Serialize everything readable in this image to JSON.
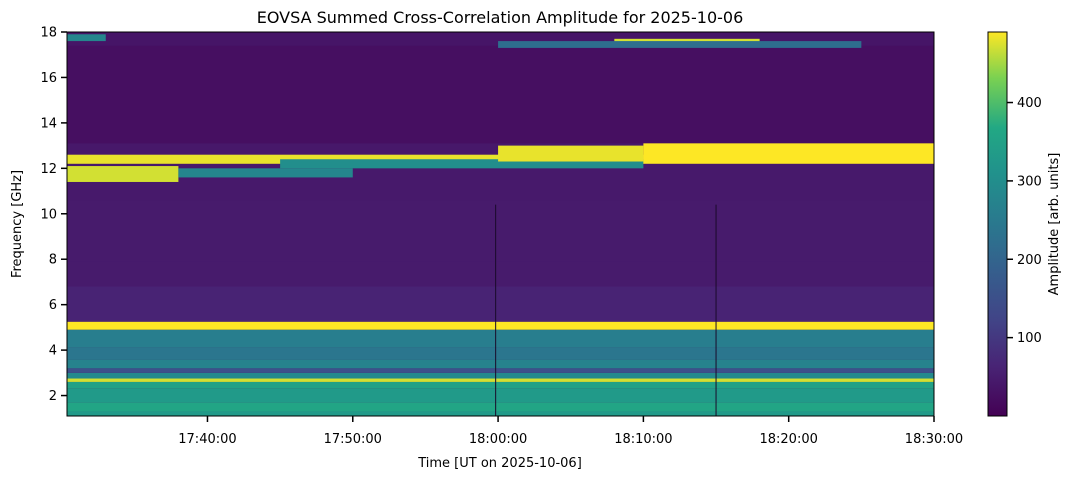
{
  "chart_data": {
    "type": "heatmap",
    "title": "EOVSA Summed Cross-Correlation Amplitude for 2025-10-06",
    "xlabel": "Time [UT on 2025-10-06]",
    "ylabel": "Frequency [GHz]",
    "colorbar_label": "Amplitude [arb. units]",
    "colormap": "viridis",
    "x_range": [
      "17:30:20",
      "18:30:00"
    ],
    "x_ticks": [
      "17:40:00",
      "17:50:00",
      "18:00:00",
      "18:10:00",
      "18:20:00",
      "18:30:00"
    ],
    "ylim": [
      1.1,
      18.0
    ],
    "y_ticks": [
      2,
      4,
      6,
      8,
      10,
      12,
      14,
      16,
      18
    ],
    "color_range": [
      0,
      490
    ],
    "colorbar_ticks": [
      100,
      200,
      300,
      400
    ],
    "background_amplitude": 40,
    "frequency_bands": [
      {
        "from": 1.1,
        "to": 1.3,
        "amplitude": 330
      },
      {
        "from": 1.3,
        "to": 1.7,
        "amplitude": 360
      },
      {
        "from": 1.7,
        "to": 2.3,
        "amplitude": 330
      },
      {
        "from": 2.3,
        "to": 2.6,
        "amplitude": 350
      },
      {
        "from": 2.6,
        "to": 2.75,
        "amplitude": 470
      },
      {
        "from": 2.75,
        "to": 3.0,
        "amplitude": 290
      },
      {
        "from": 3.0,
        "to": 3.2,
        "amplitude": 150
      },
      {
        "from": 3.2,
        "to": 3.6,
        "amplitude": 270
      },
      {
        "from": 3.6,
        "to": 4.1,
        "amplitude": 240
      },
      {
        "from": 4.1,
        "to": 4.9,
        "amplitude": 260
      },
      {
        "from": 4.9,
        "to": 5.25,
        "amplitude": 490
      },
      {
        "from": 5.25,
        "to": 6.8,
        "amplitude": 60
      },
      {
        "from": 6.8,
        "to": 7.9,
        "amplitude": 45
      },
      {
        "from": 7.9,
        "to": 10.6,
        "amplitude": 45
      },
      {
        "from": 10.6,
        "to": 12.2,
        "amplitude": 42
      },
      {
        "from": 13.1,
        "to": 17.4,
        "amplitude": 25
      },
      {
        "from": 17.4,
        "to": 18.0,
        "amplitude": 35
      }
    ],
    "emission_features": [
      {
        "t_start": "17:30:20",
        "t_end": "18:10:00",
        "f_low": 12.2,
        "f_high": 12.6,
        "amplitude": 480
      },
      {
        "t_start": "17:30:20",
        "t_end": "17:38:00",
        "f_low": 11.4,
        "f_high": 12.1,
        "amplitude": 470
      },
      {
        "t_start": "17:38:00",
        "t_end": "17:50:00",
        "f_low": 11.6,
        "f_high": 12.0,
        "amplitude": 280
      },
      {
        "t_start": "17:45:00",
        "t_end": "18:10:00",
        "f_low": 12.0,
        "f_high": 12.4,
        "amplitude": 300
      },
      {
        "t_start": "18:00:00",
        "t_end": "18:10:00",
        "f_low": 12.3,
        "f_high": 13.0,
        "amplitude": 480
      },
      {
        "t_start": "18:10:00",
        "t_end": "18:30:00",
        "f_low": 12.2,
        "f_high": 13.1,
        "amplitude": 490
      },
      {
        "t_start": "18:08:00",
        "t_end": "18:18:00",
        "f_low": 17.4,
        "f_high": 17.7,
        "amplitude": 470
      },
      {
        "t_start": "18:00:00",
        "t_end": "18:25:00",
        "f_low": 17.3,
        "f_high": 17.6,
        "amplitude": 220
      },
      {
        "t_start": "17:30:20",
        "t_end": "17:33:00",
        "f_low": 17.6,
        "f_high": 17.9,
        "amplitude": 280
      }
    ],
    "vertical_lines": [
      "17:59:50",
      "18:15:00"
    ]
  }
}
